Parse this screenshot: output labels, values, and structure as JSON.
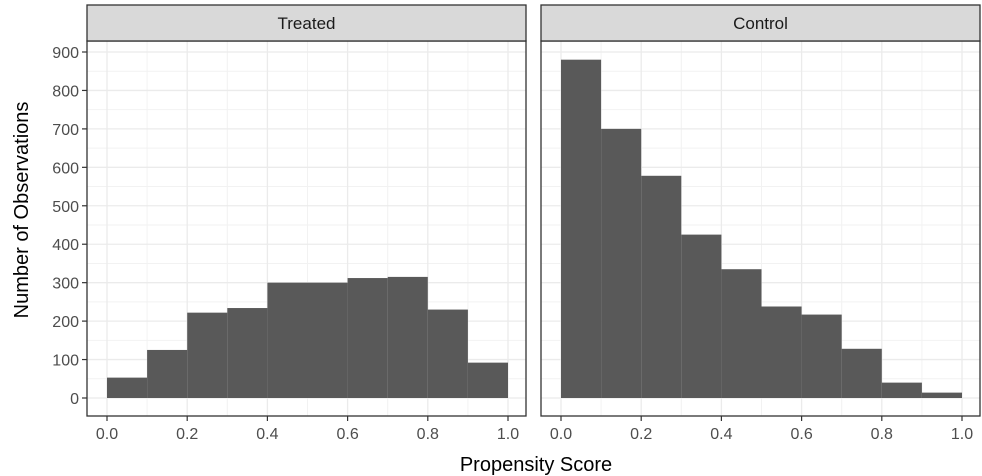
{
  "chart_data": {
    "type": "bar",
    "xlabel": "Propensity Score",
    "ylabel": "Number of Observations",
    "xlim": [
      0.0,
      1.0
    ],
    "ylim": [
      0,
      900
    ],
    "x_ticks": [
      "0.0",
      "0.2",
      "0.4",
      "0.6",
      "0.8",
      "1.0"
    ],
    "y_ticks": [
      "0",
      "100",
      "200",
      "300",
      "400",
      "500",
      "600",
      "700",
      "800",
      "900"
    ],
    "bin_edges": [
      0.0,
      0.1,
      0.2,
      0.3,
      0.4,
      0.5,
      0.6,
      0.7,
      0.8,
      0.9,
      1.0
    ],
    "grid": true,
    "bar_color": "#595959",
    "panels": [
      {
        "name": "Treated",
        "values": [
          53,
          125,
          222,
          234,
          300,
          300,
          312,
          315,
          230,
          92
        ]
      },
      {
        "name": "Control",
        "values": [
          880,
          700,
          578,
          425,
          335,
          238,
          217,
          128,
          40,
          14
        ]
      }
    ]
  }
}
